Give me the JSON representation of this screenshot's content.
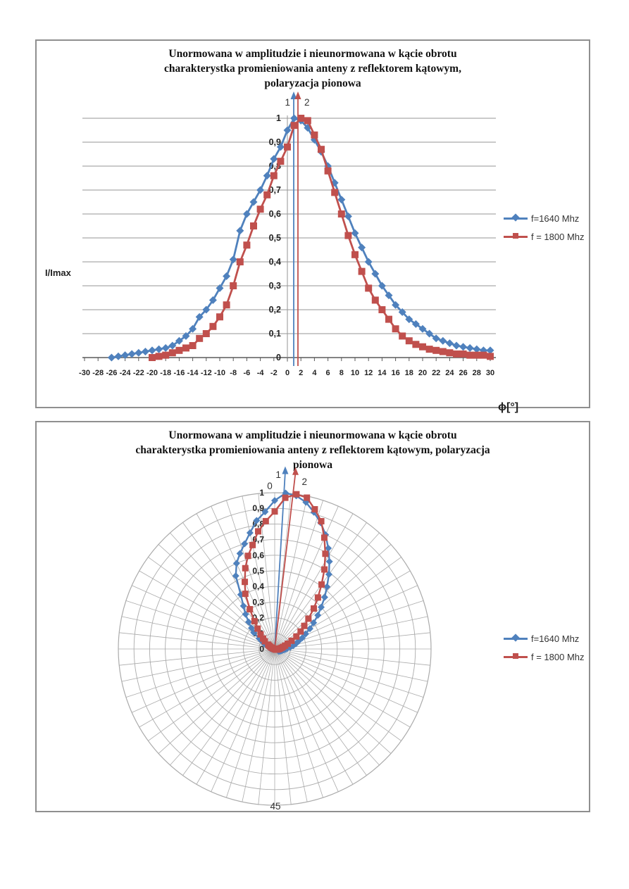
{
  "accent_colors": {
    "series1": "#4F81BD",
    "series2": "#C0504D",
    "grid": "#969696",
    "polar_grid": "#ababab",
    "axis": "#5a5a5a"
  },
  "chart_data": [
    {
      "type": "line",
      "title_lines": [
        "Unormowana w amplitudzie i nieunormowana w kącie obrotu",
        "charakterystka promieniowania anteny z reflektorem kątowym,",
        "polaryzacja pionowa"
      ],
      "ylabel": "I/Imax",
      "xlabel": "ϕ[°]",
      "xlim": [
        -30,
        30
      ],
      "ylim": [
        0,
        1
      ],
      "x_ticks": [
        -30,
        -28,
        -26,
        -24,
        -22,
        -20,
        -18,
        -16,
        -14,
        -12,
        -10,
        -8,
        -6,
        -4,
        -2,
        0,
        2,
        4,
        6,
        8,
        10,
        12,
        14,
        16,
        18,
        20,
        22,
        24,
        26,
        28,
        30
      ],
      "y_tick_labels": [
        "0",
        "0,1",
        "0,2",
        "0,3",
        "0,4",
        "0,5",
        "0,6",
        "0,7",
        "0,8",
        "0,9",
        "1"
      ],
      "grid": true,
      "legend_position": "right",
      "annotations": [
        {
          "label": "1",
          "x": 1,
          "color": "#4F81BD"
        },
        {
          "label": "2",
          "x": 2,
          "color": "#C0504D"
        }
      ],
      "series": [
        {
          "name": "f=1640 Mhz",
          "color": "#4F81BD",
          "marker": "diamond",
          "x": [
            -26,
            -25,
            -24,
            -23,
            -22,
            -21,
            -20,
            -19,
            -18,
            -17,
            -16,
            -15,
            -14,
            -13,
            -12,
            -11,
            -10,
            -9,
            -8,
            -7,
            -6,
            -5,
            -4,
            -3,
            -2,
            -1,
            0,
            1,
            2,
            3,
            4,
            5,
            6,
            7,
            8,
            9,
            10,
            11,
            12,
            13,
            14,
            15,
            16,
            17,
            18,
            19,
            20,
            21,
            22,
            23,
            24,
            25,
            26,
            27,
            28,
            29,
            30
          ],
          "values": [
            0,
            0.005,
            0.01,
            0.015,
            0.02,
            0.025,
            0.03,
            0.035,
            0.04,
            0.05,
            0.07,
            0.09,
            0.12,
            0.17,
            0.2,
            0.24,
            0.29,
            0.34,
            0.41,
            0.53,
            0.6,
            0.65,
            0.7,
            0.76,
            0.83,
            0.88,
            0.95,
            1.0,
            0.99,
            0.96,
            0.91,
            0.86,
            0.8,
            0.73,
            0.66,
            0.59,
            0.52,
            0.46,
            0.4,
            0.35,
            0.3,
            0.26,
            0.22,
            0.19,
            0.16,
            0.14,
            0.12,
            0.1,
            0.08,
            0.07,
            0.06,
            0.05,
            0.045,
            0.04,
            0.035,
            0.03,
            0.03
          ]
        },
        {
          "name": "f = 1800 Mhz",
          "color": "#C0504D",
          "marker": "square",
          "x": [
            -20,
            -19,
            -18,
            -17,
            -16,
            -15,
            -14,
            -13,
            -12,
            -11,
            -10,
            -9,
            -8,
            -7,
            -6,
            -5,
            -4,
            -3,
            -2,
            -1,
            0,
            1,
            2,
            3,
            4,
            5,
            6,
            7,
            8,
            9,
            10,
            11,
            12,
            13,
            14,
            15,
            16,
            17,
            18,
            19,
            20,
            21,
            22,
            23,
            24,
            25,
            26,
            27,
            28,
            29,
            30
          ],
          "values": [
            0,
            0.005,
            0.01,
            0.02,
            0.03,
            0.04,
            0.05,
            0.08,
            0.1,
            0.13,
            0.17,
            0.22,
            0.3,
            0.4,
            0.47,
            0.55,
            0.62,
            0.68,
            0.76,
            0.82,
            0.88,
            0.97,
            1.0,
            0.99,
            0.93,
            0.87,
            0.78,
            0.69,
            0.6,
            0.51,
            0.43,
            0.36,
            0.29,
            0.24,
            0.2,
            0.16,
            0.12,
            0.09,
            0.07,
            0.055,
            0.045,
            0.035,
            0.03,
            0.025,
            0.02,
            0.015,
            0.015,
            0.01,
            0.01,
            0.01,
            0.005
          ]
        }
      ]
    },
    {
      "type": "polar",
      "title_lines": [
        "Unormowana w amplitudzie i nieunormowana w kącie obrotu",
        "charakterystka promieniowania anteny z reflektorem kątowym, polaryzacja",
        "pionowa"
      ],
      "radial_tick_labels": [
        "0",
        "0,1",
        "0,2",
        "0,3",
        "0,4",
        "0,5",
        "0,6",
        "0,7",
        "0,8",
        "0,9",
        "1"
      ],
      "angular_labels": [
        {
          "label": "0",
          "position": "top"
        },
        {
          "label": "45",
          "position": "bottom"
        }
      ],
      "rings": 10,
      "spokes": 60,
      "degrees_per_unit": 4,
      "rmax": 1,
      "annotations": [
        {
          "label": "1",
          "x": 1,
          "color": "#4F81BD"
        },
        {
          "label": "2",
          "x": 2,
          "color": "#C0504D"
        }
      ],
      "series_ref": "same data as chart 1",
      "legend_position": "right"
    }
  ]
}
